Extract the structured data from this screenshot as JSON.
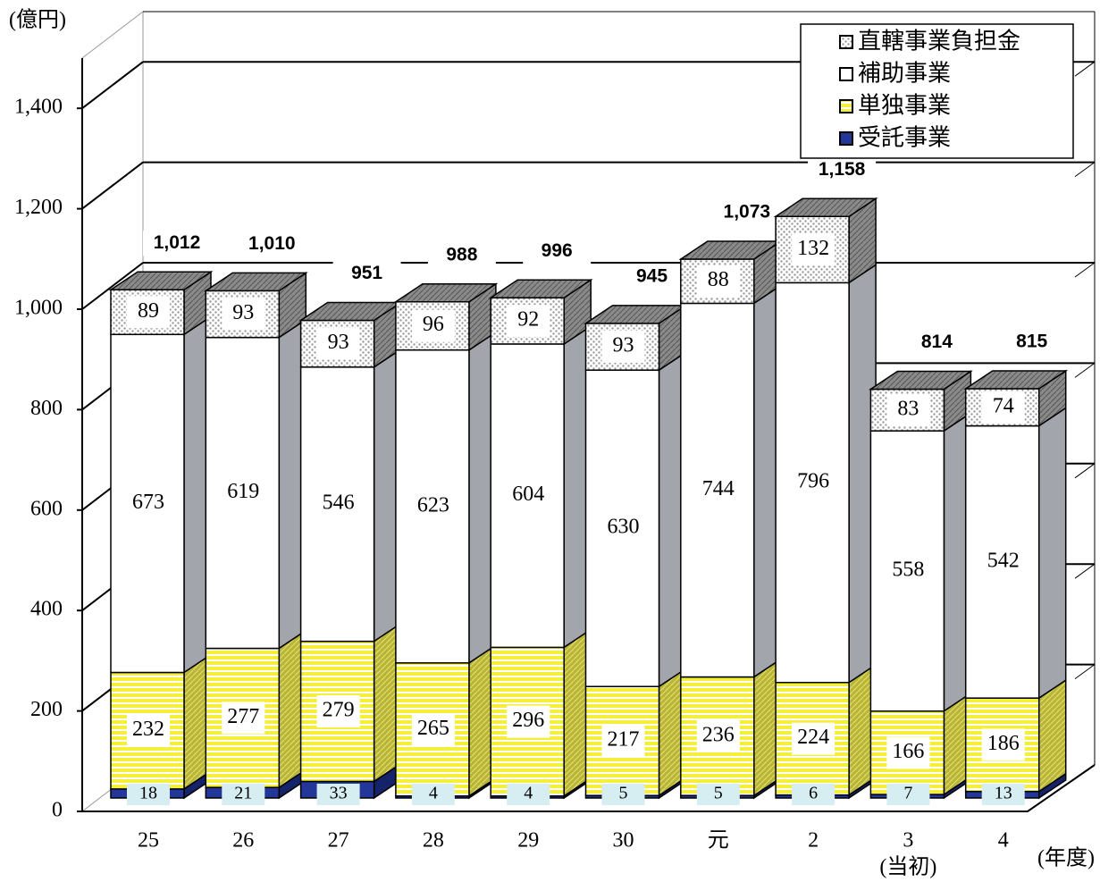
{
  "chart_data": {
    "type": "stacked_bar_3d",
    "y_axis_label": "(億円)",
    "x_axis_label": "(年度)",
    "categories": [
      "25",
      "26",
      "27",
      "28",
      "29",
      "30",
      "元",
      "2",
      "3",
      "4"
    ],
    "category_sublabels": [
      null,
      null,
      null,
      null,
      null,
      null,
      null,
      null,
      "(当初)",
      null
    ],
    "series": [
      {
        "name": "受託事業",
        "color": "#23379a",
        "pattern": null,
        "label_fill": "#d6eef2",
        "values": [
          18,
          21,
          33,
          4,
          4,
          5,
          5,
          6,
          7,
          13
        ]
      },
      {
        "name": "単独事業",
        "color": "#f4ef3a",
        "pattern": "stripes",
        "label_fill": "#ffffff",
        "values": [
          232,
          277,
          279,
          265,
          296,
          217,
          236,
          224,
          166,
          186
        ]
      },
      {
        "name": "補助事業",
        "color": "#ffffff",
        "pattern": null,
        "label_fill": "#ffffff",
        "values": [
          673,
          619,
          546,
          623,
          604,
          630,
          744,
          796,
          558,
          542
        ]
      },
      {
        "name": "直轄事業負担金",
        "color": "#9a9a9a",
        "pattern": "dots",
        "label_fill": "#ffffff",
        "values": [
          89,
          93,
          93,
          96,
          92,
          93,
          88,
          132,
          83,
          74
        ]
      }
    ],
    "totals": [
      1012,
      1010,
      951,
      988,
      996,
      945,
      1073,
      1158,
      814,
      815
    ],
    "total_labels": [
      "1,012",
      "1,010",
      "951",
      "988",
      "996",
      "945",
      "1,073",
      "1,158",
      "814",
      "815"
    ],
    "ylim": [
      0,
      1500
    ],
    "yticks": [
      0,
      200,
      400,
      600,
      800,
      {
        "value": 1000,
        "label": "1,000"
      },
      {
        "value": 1200,
        "label": "1,200"
      },
      {
        "value": 1400,
        "label": "1,400"
      }
    ],
    "grid": true,
    "legend": "top-right"
  }
}
